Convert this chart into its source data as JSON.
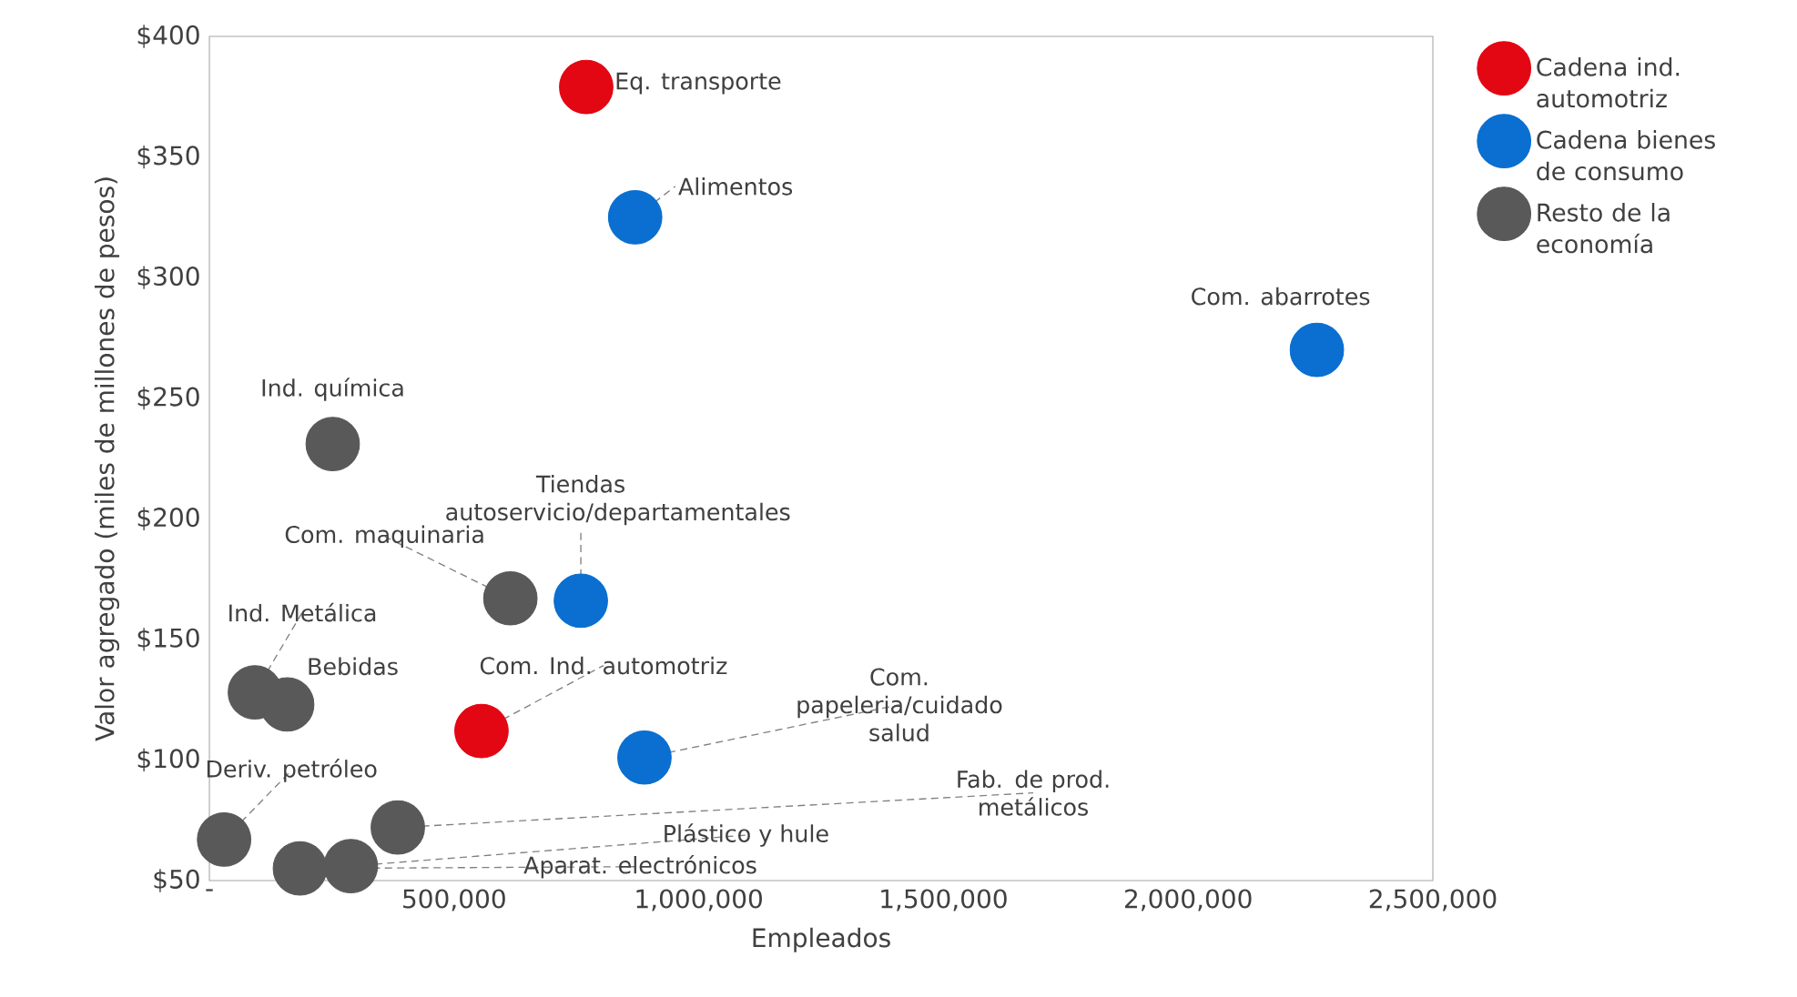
{
  "chart_data": {
    "type": "scatter",
    "xlabel": "Empleados",
    "ylabel": "Valor agregado (miles de millones de pesos)",
    "xlim": [
      0,
      2500000
    ],
    "ylim": [
      50,
      400
    ],
    "xticks": [
      {
        "value": 0,
        "label": "-"
      },
      {
        "value": 500000,
        "label": "500,000"
      },
      {
        "value": 1000000,
        "label": "1,000,000"
      },
      {
        "value": 1500000,
        "label": "1,500,000"
      },
      {
        "value": 2000000,
        "label": "2,000,000"
      },
      {
        "value": 2500000,
        "label": "2,500,000"
      }
    ],
    "yticks": [
      {
        "value": 50,
        "label": "$50"
      },
      {
        "value": 100,
        "label": "$100"
      },
      {
        "value": 150,
        "label": "$150"
      },
      {
        "value": 200,
        "label": "$200"
      },
      {
        "value": 250,
        "label": "$250"
      },
      {
        "value": 300,
        "label": "$300"
      },
      {
        "value": 350,
        "label": "$350"
      },
      {
        "value": 400,
        "label": "$400"
      }
    ],
    "marker": "circle",
    "legend": "right",
    "grid": false,
    "series": [
      {
        "name": "Cadena ind. automotriz",
        "color": "#e30613",
        "x": [
          770000,
          556000
        ],
        "values": [
          379,
          112
        ]
      },
      {
        "name": "Cadena bienes de consumo",
        "color": "#0a6fd0",
        "x": [
          870000,
          2263000,
          759000,
          889000
        ],
        "values": [
          325,
          270,
          166,
          101
        ]
      },
      {
        "name": "Resto de la economía",
        "color": "#595959",
        "x": [
          252000,
          615000,
          93000,
          159000,
          30000,
          385000,
          289000,
          185000
        ],
        "values": [
          231,
          167,
          128,
          123,
          67,
          72,
          56,
          55
        ]
      }
    ],
    "annotations": [
      {
        "text": "Eq. transporte",
        "x": 770000,
        "y": 379
      },
      {
        "text": "Alimentos",
        "x": 870000,
        "y": 325
      },
      {
        "text": "Com. abarrotes",
        "x": 2263000,
        "y": 270
      },
      {
        "text": "Ind. química",
        "x": 252000,
        "y": 231
      },
      {
        "text": "Tiendas autoservicio/departamentales",
        "x": 759000,
        "y": 166
      },
      {
        "text": "Com. maquinaria",
        "x": 615000,
        "y": 167
      },
      {
        "text": "Ind. Metálica",
        "x": 93000,
        "y": 128
      },
      {
        "text": "Bebidas",
        "x": 159000,
        "y": 123
      },
      {
        "text": "Com. Ind. automotriz",
        "x": 556000,
        "y": 112
      },
      {
        "text": "Com. papeleria/cuidado salud",
        "x": 889000,
        "y": 101
      },
      {
        "text": "Deriv. petróleo",
        "x": 30000,
        "y": 67
      },
      {
        "text": "Fab. de prod. metálicos",
        "x": 385000,
        "y": 72
      },
      {
        "text": "Plástico y hule",
        "x": 289000,
        "y": 56
      },
      {
        "text": "Aparat. electrónicos",
        "x": 185000,
        "y": 55
      }
    ]
  }
}
